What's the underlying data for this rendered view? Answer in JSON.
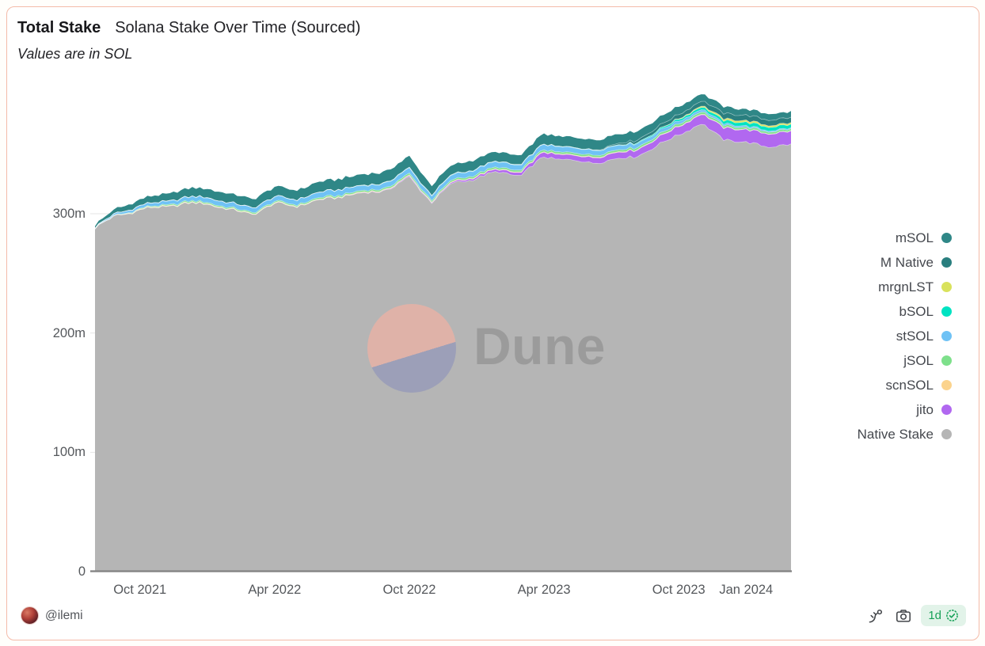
{
  "header": {
    "title_bold": "Total Stake",
    "title_rest": "Solana Stake Over Time (Sourced)",
    "subtitle": "Values are in SOL"
  },
  "watermark": {
    "brand": "Dune"
  },
  "footer": {
    "username": "@ilemi",
    "freshness_label": "1d",
    "icons": [
      "fork-icon",
      "camera-icon",
      "verified-check-icon"
    ]
  },
  "colors": {
    "card_border": "#f4bba9",
    "card_bg": "#ffffff",
    "axis_label": "#55585c",
    "legend_label": "#45484e",
    "axis_line": "#858585",
    "gridline": "#e6e6e6",
    "badge_bg": "#e2f3e9",
    "badge_text": "#17a158",
    "watermark_text": "#9b9b9b",
    "watermark_pink": "#dfb2a8",
    "watermark_slate": "#9c9fb8"
  },
  "chart_data": {
    "type": "area",
    "stacked": true,
    "title": "Solana Stake Over Time (Sourced)",
    "unit": "SOL (millions)",
    "ylabel": "",
    "xlabel": "",
    "grid": "minimal",
    "legend_position": "right",
    "ylim": [
      0,
      412
    ],
    "x_monthly": [
      "Aug 2021",
      "Sep 2021",
      "Oct 2021",
      "Nov 2021",
      "Dec 2021",
      "Jan 2022",
      "Feb 2022",
      "Mar 2022",
      "Apr 2022",
      "May 2022",
      "Jun 2022",
      "Jul 2022",
      "Aug 2022",
      "Sep 2022",
      "Oct 2022",
      "Nov 2022",
      "Dec 2022",
      "Jan 2023",
      "Feb 2023",
      "Mar 2023",
      "Apr 2023",
      "May 2023",
      "Jun 2023",
      "Jul 2023",
      "Aug 2023",
      "Sep 2023",
      "Oct 2023",
      "Nov 2023",
      "Dec 2023",
      "Jan 2024",
      "Feb 2024",
      "Mar 2024"
    ],
    "series": [
      {
        "name": "Native Stake",
        "color": "#b5b5b5",
        "values": [
          288,
          299,
          303,
          306,
          308,
          309,
          303,
          300,
          308,
          307,
          311,
          315,
          317,
          320,
          330,
          310,
          326,
          330,
          335,
          332,
          348,
          345,
          343,
          345,
          348,
          356,
          367,
          375,
          363,
          359,
          357,
          357
        ]
      },
      {
        "name": "jito",
        "color": "#b168f0",
        "values": [
          0,
          0,
          0,
          0,
          0,
          0,
          0,
          0,
          0,
          0,
          0,
          0,
          0.3,
          0.4,
          0.8,
          0.5,
          1,
          1.5,
          2,
          2.5,
          4,
          4,
          4.5,
          5,
          5.5,
          6,
          7,
          8,
          10,
          10.5,
          11,
          11
        ]
      },
      {
        "name": "scnSOL",
        "color": "#fbd38d",
        "values": [
          0,
          0.2,
          0.5,
          0.5,
          0.5,
          0.5,
          0.5,
          0.5,
          0.5,
          0.5,
          0.5,
          0.5,
          0.5,
          0.5,
          0.5,
          0.5,
          0.5,
          0.5,
          0.5,
          0.5,
          0.5,
          0.5,
          0.5,
          0.5,
          0.4,
          0.4,
          0.4,
          0.4,
          0.4,
          0.3,
          0.3,
          0.3
        ]
      },
      {
        "name": "jSOL",
        "color": "#7ee08b",
        "values": [
          0,
          0.3,
          0.5,
          0.8,
          1,
          1,
          1,
          1,
          1,
          1,
          1.2,
          1.2,
          1.2,
          1.3,
          1.5,
          1.3,
          1.4,
          1.5,
          1.5,
          1.5,
          1.6,
          1.6,
          1.6,
          1.6,
          1.7,
          1.8,
          1.8,
          1.8,
          1.7,
          1.6,
          1.5,
          1.5
        ]
      },
      {
        "name": "stSOL",
        "color": "#6fc2f5",
        "values": [
          0.5,
          1.5,
          2.5,
          3,
          3.5,
          4,
          4,
          4,
          4,
          4.3,
          4.5,
          4.8,
          4,
          4.2,
          4.5,
          4,
          4.2,
          4.5,
          4.5,
          4.3,
          4.5,
          4.3,
          4,
          3.8,
          3.5,
          3,
          2.5,
          2,
          1.5,
          1.2,
          1,
          0.8
        ]
      },
      {
        "name": "bSOL",
        "color": "#00e3c2",
        "values": [
          0,
          0,
          0,
          0,
          0,
          0,
          0,
          0,
          0,
          0,
          0,
          0,
          0.3,
          0.3,
          0.3,
          0.3,
          0.3,
          0.3,
          0.3,
          0.3,
          0.3,
          0.3,
          0.3,
          0.3,
          0.5,
          1,
          1.5,
          2,
          2.5,
          3,
          3,
          3
        ]
      },
      {
        "name": "mrgnLST",
        "color": "#d9e25c",
        "values": [
          0,
          0,
          0,
          0,
          0,
          0,
          0,
          0,
          0,
          0,
          0,
          0,
          0,
          0,
          0,
          0,
          0,
          0,
          0,
          0,
          0,
          0,
          0,
          0,
          0,
          0,
          0.5,
          1,
          1.5,
          1.5,
          1.4,
          1.3
        ]
      },
      {
        "name": "M Native",
        "color": "#2a7f7f",
        "values": [
          0,
          0,
          0,
          0,
          0,
          0,
          0,
          0,
          0,
          0,
          0,
          0,
          0,
          0,
          0,
          0,
          0,
          0,
          0,
          0,
          0,
          0,
          0,
          1,
          2,
          3,
          3.5,
          4,
          4.5,
          4.5,
          4.5,
          4.5
        ]
      },
      {
        "name": "mSOL",
        "color": "#2f8787",
        "values": [
          2,
          4,
          5,
          6,
          7,
          7.5,
          7.5,
          7.5,
          8,
          8,
          8.5,
          9,
          9,
          9.5,
          9.5,
          8,
          8,
          8,
          8,
          8,
          8.5,
          8.5,
          8.5,
          8,
          7.5,
          7,
          6.5,
          6,
          5.5,
          5,
          5,
          5
        ]
      }
    ],
    "legend_top_to_bottom": [
      "mSOL",
      "M Native",
      "mrgnLST",
      "bSOL",
      "stSOL",
      "jSOL",
      "scnSOL",
      "jito",
      "Native Stake"
    ],
    "y_ticks": [
      {
        "label": "0",
        "value": 0
      },
      {
        "label": "100m",
        "value": 100
      },
      {
        "label": "200m",
        "value": 200
      },
      {
        "label": "300m",
        "value": 300
      }
    ],
    "x_ticks": [
      {
        "label": "Oct 2021",
        "month_index": 2
      },
      {
        "label": "Apr 2022",
        "month_index": 8
      },
      {
        "label": "Oct 2022",
        "month_index": 14
      },
      {
        "label": "Apr 2023",
        "month_index": 20
      },
      {
        "label": "Oct 2023",
        "month_index": 26
      },
      {
        "label": "Jan 2024",
        "month_index": 29
      }
    ]
  }
}
